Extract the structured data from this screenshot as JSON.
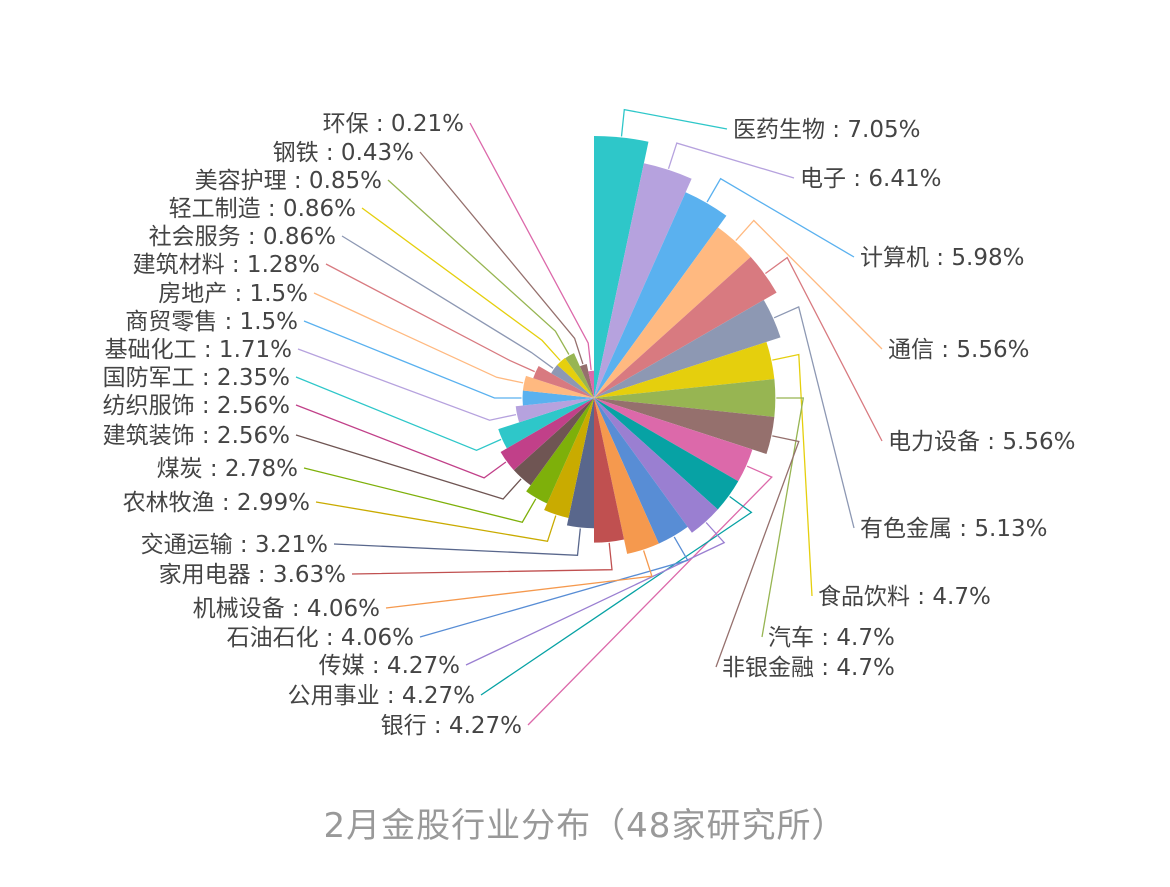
{
  "caption": "2月金股行业分布（48家研究所）",
  "chart_data": {
    "type": "pie",
    "variant": "rose-radius",
    "series": [
      {
        "name": "医药生物",
        "value": 7.05,
        "label": "医药生物 : 7.05%",
        "color": "#2ec7c9"
      },
      {
        "name": "电子",
        "value": 6.41,
        "label": "电子 : 6.41%",
        "color": "#b6a2de"
      },
      {
        "name": "计算机",
        "value": 5.98,
        "label": "计算机 : 5.98%",
        "color": "#5ab1ef"
      },
      {
        "name": "通信",
        "value": 5.56,
        "label": "通信 : 5.56%",
        "color": "#ffb980"
      },
      {
        "name": "电力设备",
        "value": 5.56,
        "label": "电力设备 : 5.56%",
        "color": "#d87a80"
      },
      {
        "name": "有色金属",
        "value": 5.13,
        "label": "有色金属 : 5.13%",
        "color": "#8d98b3"
      },
      {
        "name": "食品饮料",
        "value": 4.7,
        "label": "食品饮料 : 4.7%",
        "color": "#e5cf0d"
      },
      {
        "name": "汽车",
        "value": 4.7,
        "label": "汽车 : 4.7%",
        "color": "#97b552"
      },
      {
        "name": "非银金融",
        "value": 4.7,
        "label": "非银金融 : 4.7%",
        "color": "#95706d"
      },
      {
        "name": "银行",
        "value": 4.27,
        "label": "银行 : 4.27%",
        "color": "#dc69aa"
      },
      {
        "name": "公用事业",
        "value": 4.27,
        "label": "公用事业 : 4.27%",
        "color": "#07a2a4"
      },
      {
        "name": "传媒",
        "value": 4.27,
        "label": "传媒 : 4.27%",
        "color": "#9a7fd1"
      },
      {
        "name": "石油石化",
        "value": 4.06,
        "label": "石油石化 : 4.06%",
        "color": "#588dd5"
      },
      {
        "name": "机械设备",
        "value": 4.06,
        "label": "机械设备 : 4.06%",
        "color": "#f5994e"
      },
      {
        "name": "家用电器",
        "value": 3.63,
        "label": "家用电器 : 3.63%",
        "color": "#c05050"
      },
      {
        "name": "交通运输",
        "value": 3.21,
        "label": "交通运输 : 3.21%",
        "color": "#59678c"
      },
      {
        "name": "农林牧渔",
        "value": 2.99,
        "label": "农林牧渔 : 2.99%",
        "color": "#c9ab00"
      },
      {
        "name": "煤炭",
        "value": 2.78,
        "label": "煤炭 : 2.78%",
        "color": "#7eb00a"
      },
      {
        "name": "建筑装饰",
        "value": 2.56,
        "label": "建筑装饰 : 2.56%",
        "color": "#6f5553"
      },
      {
        "name": "纺织服饰",
        "value": 2.56,
        "label": "纺织服饰 : 2.56%",
        "color": "#c14089"
      },
      {
        "name": "国防军工",
        "value": 2.35,
        "label": "国防军工 : 2.35%",
        "color": "#2ec7c9"
      },
      {
        "name": "基础化工",
        "value": 1.71,
        "label": "基础化工 : 1.71%",
        "color": "#b6a2de"
      },
      {
        "name": "商贸零售",
        "value": 1.5,
        "label": "商贸零售 : 1.5%",
        "color": "#5ab1ef"
      },
      {
        "name": "房地产",
        "value": 1.5,
        "label": "房地产 : 1.5%",
        "color": "#ffb980"
      },
      {
        "name": "建筑材料",
        "value": 1.28,
        "label": "建筑材料 : 1.28%",
        "color": "#d87a80"
      },
      {
        "name": "社会服务",
        "value": 0.86,
        "label": "社会服务 : 0.86%",
        "color": "#8d98b3"
      },
      {
        "name": "轻工制造",
        "value": 0.86,
        "label": "轻工制造 : 0.86%",
        "color": "#e5cf0d"
      },
      {
        "name": "美容护理",
        "value": 0.85,
        "label": "美容护理 : 0.85%",
        "color": "#97b552"
      },
      {
        "name": "钢铁",
        "value": 0.43,
        "label": "钢铁 : 0.43%",
        "color": "#95706d"
      },
      {
        "name": "环保",
        "value": 0.21,
        "label": "环保 : 0.21%",
        "color": "#dc69aa"
      }
    ]
  }
}
